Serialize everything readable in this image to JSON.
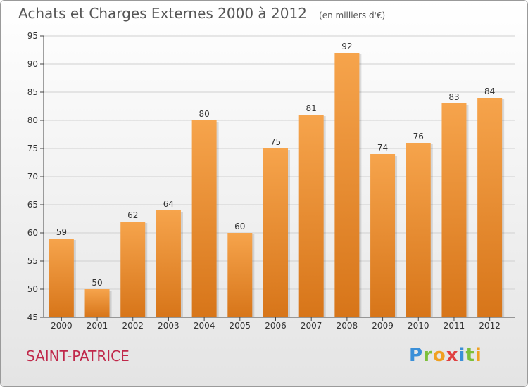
{
  "title": "Achats et Charges Externes 2000 à 2012",
  "unit_label": "(en milliers d'€)",
  "commune": "SAINT-PATRICE",
  "logo_text": "Proxiti",
  "colors": {
    "bar_light": "#f6a44c",
    "bar_dark": "#d77519",
    "commune": "#c0284a",
    "grid": "#d0d0d0"
  },
  "chart_data": {
    "type": "bar",
    "title": "Achats et Charges Externes 2000 à 2012",
    "subtitle": "(en milliers d'€)",
    "categories": [
      "2000",
      "2001",
      "2002",
      "2003",
      "2004",
      "2005",
      "2006",
      "2007",
      "2008",
      "2009",
      "2010",
      "2011",
      "2012"
    ],
    "values": [
      59,
      50,
      62,
      64,
      80,
      60,
      75,
      81,
      92,
      74,
      76,
      83,
      84
    ],
    "ylim": [
      45,
      95
    ],
    "yticks": [
      45,
      50,
      55,
      60,
      65,
      70,
      75,
      80,
      85,
      90,
      95
    ],
    "grid": true,
    "data_labels": true
  }
}
